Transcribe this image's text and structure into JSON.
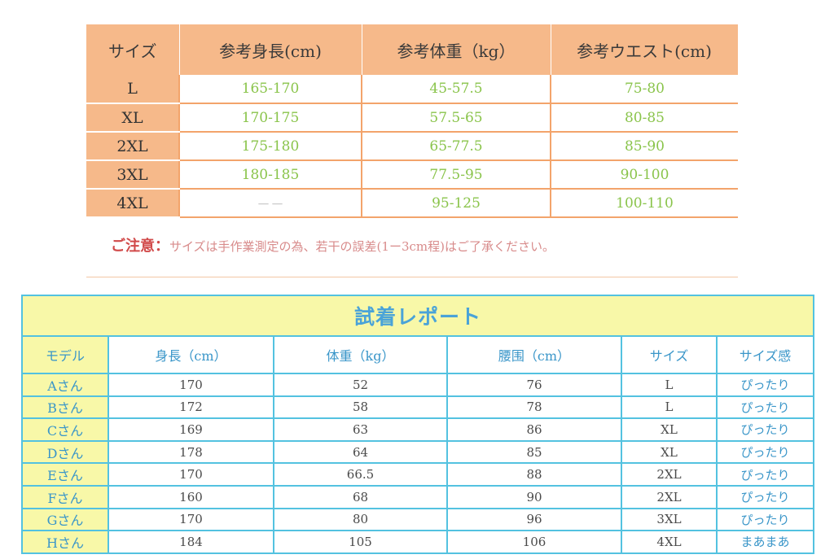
{
  "size_table": {
    "headers": [
      "サイズ",
      "参考身長(cm)",
      "参考体重（kg）",
      "参考ウエスト(cm)"
    ],
    "rows": [
      {
        "size": "L",
        "height": "165-170",
        "weight": "45-57.5",
        "waist": "75-80"
      },
      {
        "size": "XL",
        "height": "170-175",
        "weight": "57.5-65",
        "waist": "80-85"
      },
      {
        "size": "2XL",
        "height": "175-180",
        "weight": "65-77.5",
        "waist": "85-90"
      },
      {
        "size": "3XL",
        "height": "180-185",
        "weight": "77.5-95",
        "waist": "90-100"
      },
      {
        "size": "4XL",
        "height": "－－",
        "weight": "95-125",
        "waist": "100-110"
      }
    ]
  },
  "note": {
    "label": "ご注意：",
    "text": "サイズは手作業測定の為、若干の誤差(1ー3cm程)はご了承ください。"
  },
  "report": {
    "title": "試着レポート",
    "headers": [
      "モデル",
      "身長（cm）",
      "体重（kg）",
      "腰围（cm）",
      "サイズ",
      "サイズ感"
    ],
    "rows": [
      {
        "model": "Aさん",
        "height": "170",
        "weight": "52",
        "waist": "76",
        "size": "L",
        "fit": "ぴったり"
      },
      {
        "model": "Bさん",
        "height": "172",
        "weight": "58",
        "waist": "78",
        "size": "L",
        "fit": "ぴったり"
      },
      {
        "model": "Cさん",
        "height": "169",
        "weight": "63",
        "waist": "86",
        "size": "XL",
        "fit": "ぴったり"
      },
      {
        "model": "Dさん",
        "height": "178",
        "weight": "64",
        "waist": "85",
        "size": "XL",
        "fit": "ぴったり"
      },
      {
        "model": "Eさん",
        "height": "170",
        "weight": "66.5",
        "waist": "88",
        "size": "2XL",
        "fit": "ぴったり"
      },
      {
        "model": "Fさん",
        "height": "160",
        "weight": "68",
        "waist": "90",
        "size": "2XL",
        "fit": "ぴったり"
      },
      {
        "model": "Gさん",
        "height": "170",
        "weight": "80",
        "waist": "96",
        "size": "3XL",
        "fit": "ぴったり"
      },
      {
        "model": "Hさん",
        "height": "184",
        "weight": "105",
        "waist": "106",
        "size": "4XL",
        "fit": "まあまあ"
      }
    ]
  },
  "colors": {
    "size_header_bg": "#f6b98a",
    "size_value_text": "#8ac44b",
    "report_border": "#53c2e0",
    "report_title_bg": "#f8f8a8",
    "report_text_blue": "#3a96c9",
    "note_red": "#d14a4a"
  }
}
